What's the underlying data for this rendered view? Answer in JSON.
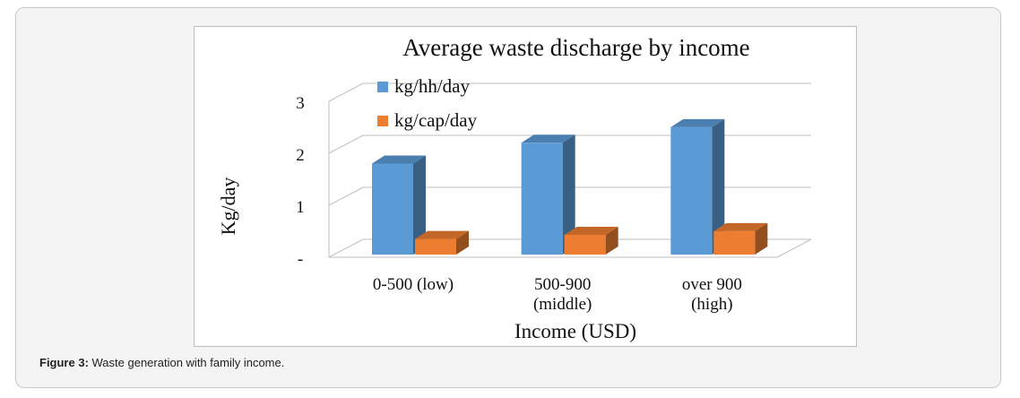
{
  "caption": {
    "label": "Figure 3:",
    "text": " Waste generation with family income."
  },
  "chart_data": {
    "type": "bar",
    "title": "Average waste discharge by income",
    "xlabel": "Income (USD)",
    "ylabel": "Kg/day",
    "ylim": [
      0,
      3
    ],
    "yticks": [
      "-",
      "1",
      "2",
      "3"
    ],
    "categories": [
      [
        "0-500 (low)"
      ],
      [
        "500-900",
        "(middle)"
      ],
      [
        "over 900",
        "(high)"
      ]
    ],
    "series": [
      {
        "name": "kg/hh/day",
        "values": [
          1.75,
          2.15,
          2.45
        ]
      },
      {
        "name": "kg/cap/day",
        "values": [
          0.3,
          0.38,
          0.45
        ]
      }
    ],
    "legend_position": "top",
    "colors": {
      "kg/hh/day": "#5b9bd5",
      "kg/cap/day": "#ed7d31"
    }
  }
}
